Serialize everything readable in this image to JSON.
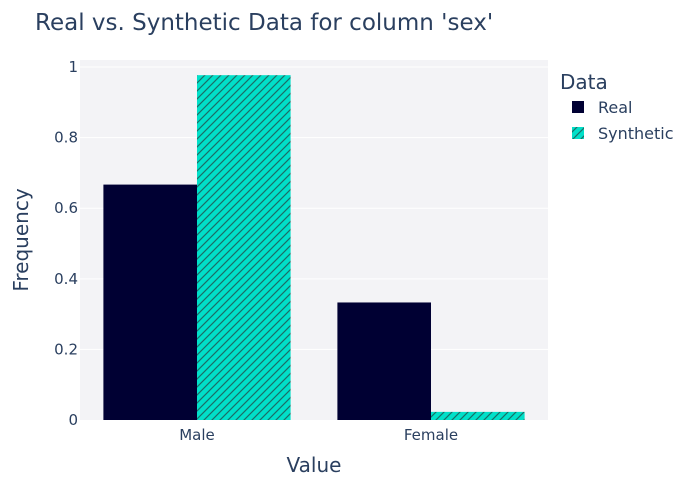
{
  "colors": {
    "real": "#000033",
    "synthetic": "#01E0C9",
    "plot_bg": "#F3F3F6",
    "grid": "#FFFFFF",
    "text": "#2a3f5f",
    "hatch": "#1a6e66"
  },
  "chart_data": {
    "type": "bar",
    "title": "Real vs. Synthetic Data for column 'sex'",
    "xlabel": "Value",
    "ylabel": "Frequency",
    "categories": [
      "Male",
      "Female"
    ],
    "series": [
      {
        "name": "Real",
        "values": [
          0.667,
          0.333
        ]
      },
      {
        "name": "Synthetic",
        "values": [
          0.977,
          0.023
        ]
      }
    ],
    "ylim": [
      0,
      1.02
    ],
    "yticks": [
      0,
      0.2,
      0.4,
      0.6,
      0.8,
      1
    ],
    "ytick_labels": [
      "0",
      "0.2",
      "0.4",
      "0.6",
      "0.8",
      "1"
    ],
    "legend": {
      "title": "Data",
      "position": "right"
    },
    "grid": true
  }
}
